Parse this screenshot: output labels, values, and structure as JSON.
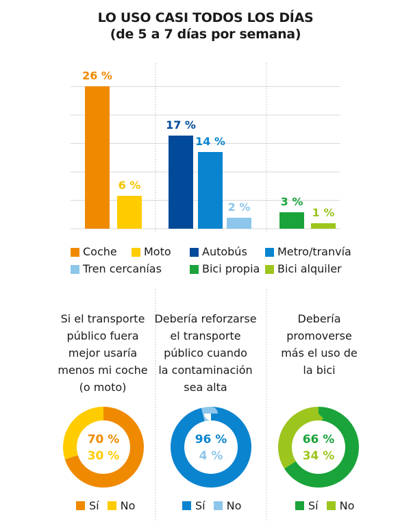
{
  "header": {
    "title_line1": "LO USO CASI TODOS LOS DÍAS",
    "title_line2": "(de 5 a 7 días por semana)"
  },
  "chart_data": [
    {
      "type": "bar",
      "categories": [
        "Coche",
        "Moto",
        "Autobús",
        "Metro/tranvía",
        "Tren cercanías",
        "Bici propia",
        "Bici alquiler"
      ],
      "values": [
        26,
        6,
        17,
        14,
        2,
        3,
        1
      ],
      "labels": [
        "26 %",
        "6 %",
        "17 %",
        "14 %",
        "2 %",
        "3 %",
        "1 %"
      ],
      "colors": [
        "#ef8a00",
        "#ffcc00",
        "#004a99",
        "#0a84cf",
        "#8cc6ea",
        "#1aa33a",
        "#9cc51e"
      ],
      "label_colors": [
        "#ef8a00",
        "#f5c400",
        "#004a99",
        "#0a84cf",
        "#8cc6ea",
        "#1aa33a",
        "#9cc51e"
      ],
      "ylim": [
        0,
        26
      ],
      "grid": true,
      "legend": [
        "Coche",
        "Moto",
        "Autobús",
        "Metro/tranvía",
        "Tren cercanías",
        "Bici propia",
        "Bici alquiler"
      ]
    },
    {
      "type": "pie",
      "question": [
        "Si el transporte",
        "público fuera",
        "mejor usaría",
        "menos mi coche",
        "(o moto)"
      ],
      "slices": [
        {
          "name": "Sí",
          "value": 70,
          "label": "70 %",
          "color": "#ef8a00"
        },
        {
          "name": "No",
          "value": 30,
          "label": "30 %",
          "color": "#ffcc00"
        }
      ]
    },
    {
      "type": "pie",
      "question": [
        "Debería reforzarse",
        "el transporte",
        "público cuando",
        "la contaminación",
        "sea alta"
      ],
      "slices": [
        {
          "name": "Sí",
          "value": 96,
          "label": "96 %",
          "color": "#0a84cf"
        },
        {
          "name": "No",
          "value": 4,
          "label": "4 %",
          "color": "#8cc6ea"
        }
      ]
    },
    {
      "type": "pie",
      "question": [
        "Debería",
        "promoverse",
        "más el uso de",
        "la bici"
      ],
      "slices": [
        {
          "name": "Sí",
          "value": 66,
          "label": "66 %",
          "color": "#1aa33a"
        },
        {
          "name": "No",
          "value": 34,
          "label": "34 %",
          "color": "#9cc51e"
        }
      ]
    }
  ]
}
